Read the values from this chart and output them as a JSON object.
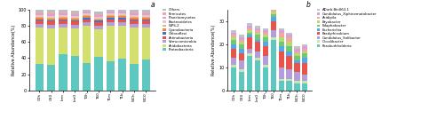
{
  "categories_a": [
    "C0h",
    "C60",
    "Lrm",
    "Lm0",
    "T0h",
    "T60",
    "T1m",
    "T1b",
    "WCh",
    "WC0"
  ],
  "categories_b": [
    "C0h",
    "C60",
    "Lrm",
    "Lm0",
    "T0h",
    "T60",
    "T1m",
    "T1b",
    "WCh",
    "WC0"
  ],
  "phyla_labels": [
    "Proteobacteria",
    "Acidobacteria",
    "Verrucomicrobia",
    "Actinobacteria",
    "Chloroflexi",
    "Cyanobacteria",
    "WPS-2",
    "Bacteroidetes",
    "Planctomycetes",
    "Firmicutes",
    "Others"
  ],
  "phyla_colors": [
    "#5ec8c0",
    "#d4e06e",
    "#b39ddb",
    "#e8534a",
    "#3a78c9",
    "#f0824a",
    "#d8c070",
    "#f4c0c8",
    "#d8a0d8",
    "#f0a8a0",
    "#b8bec4"
  ],
  "phyla_data": {
    "Proteobacteria": [
      33,
      32,
      45,
      43,
      34,
      41,
      36,
      39,
      33,
      38
    ],
    "Acidobacteria": [
      45,
      45,
      33,
      34,
      46,
      35,
      44,
      41,
      45,
      40
    ],
    "Verrucomicrobia": [
      4,
      4,
      4,
      4,
      4,
      4,
      4,
      4,
      4,
      4
    ],
    "Actinobacteria": [
      4,
      4,
      4,
      4,
      4,
      4,
      4,
      4,
      4,
      4
    ],
    "Chloroflexi": [
      2,
      2,
      2,
      2,
      2,
      2,
      2,
      2,
      2,
      2
    ],
    "Cyanobacteria": [
      2,
      2,
      2,
      2,
      2,
      2,
      2,
      2,
      2,
      2
    ],
    "WPS-2": [
      1,
      1,
      1,
      1,
      1,
      1,
      1,
      1,
      1,
      1
    ],
    "Bacteroidetes": [
      2,
      2,
      2,
      2,
      2,
      2,
      2,
      2,
      2,
      2
    ],
    "Planctomycetes": [
      2,
      2,
      2,
      2,
      2,
      2,
      2,
      2,
      2,
      2
    ],
    "Firmicutes": [
      1,
      2,
      1,
      1,
      1,
      1,
      1,
      1,
      1,
      1
    ],
    "Others": [
      4,
      4,
      4,
      4,
      4,
      4,
      4,
      4,
      4,
      4
    ]
  },
  "genera_labels": [
    "Paraburkholderia",
    "Occalibacter",
    "Candidatus_Solibacter",
    "Bradyrhizobium",
    "Escherichia",
    "Edaphobacter",
    "Bryobacter",
    "Acidipila",
    "Candidatus_Xiphinematobacter",
    "ADurb.Bin063-1"
  ],
  "genera_colors": [
    "#5ec8c0",
    "#c8e4b0",
    "#b39ddb",
    "#e8534a",
    "#52a8e8",
    "#72c872",
    "#b8d870",
    "#f0a8a0",
    "#d8a0d8",
    "#c0c4c8"
  ],
  "genera_data": {
    "Paraburkholderia": [
      10,
      8,
      15,
      13,
      10,
      22,
      4,
      4,
      3,
      3
    ],
    "Occalibacter": [
      1,
      1,
      1,
      1,
      1,
      1,
      1,
      1,
      1,
      1
    ],
    "Candidatus_Solibacter": [
      3,
      4,
      2,
      3,
      4,
      3,
      5,
      4,
      4,
      3
    ],
    "Bradyrhizobium": [
      4,
      3,
      5,
      4,
      4,
      4,
      7,
      6,
      4,
      5
    ],
    "Escherichia": [
      2,
      2,
      1,
      1,
      2,
      2,
      2,
      2,
      1,
      2
    ],
    "Edaphobacter": [
      2,
      2,
      1,
      2,
      2,
      1,
      2,
      2,
      2,
      2
    ],
    "Bryobacter": [
      1,
      1,
      1,
      1,
      1,
      1,
      2,
      2,
      1,
      1
    ],
    "Acidipila": [
      1,
      1,
      1,
      1,
      1,
      1,
      2,
      2,
      1,
      1
    ],
    "Candidatus_Xiphinematobacter": [
      1,
      1,
      1,
      1,
      1,
      1,
      1,
      1,
      1,
      1
    ],
    "ADurb.Bin063-1": [
      1,
      1,
      1,
      1,
      1,
      1,
      1,
      1,
      1,
      1
    ]
  },
  "ylabel_a": "Relative Abundance(%)",
  "ylabel_b": "Relative Abundance(%)",
  "ylim_a": [
    0,
    100
  ],
  "ylim_b": [
    0,
    35
  ],
  "yticks_b": [
    0,
    10,
    20,
    30
  ],
  "label_a": "a",
  "label_b": "b",
  "bg_color": "#ffffff"
}
